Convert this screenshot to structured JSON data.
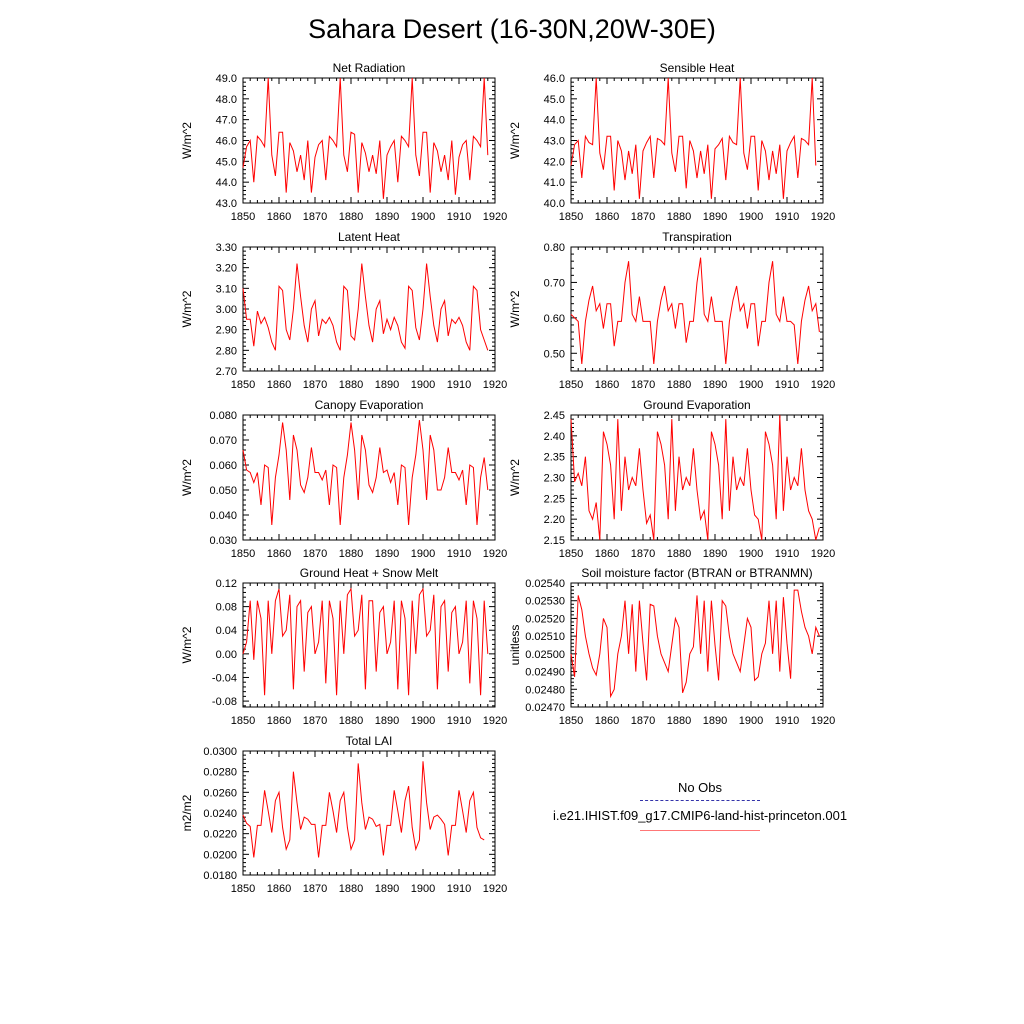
{
  "title": "Sahara Desert (16-30N,20W-30E)",
  "line_color": "#ff0000",
  "obs_color": "#3333aa",
  "legend": {
    "obs_label": "No Obs",
    "model_label": "i.e21.IHIST.f09_g17.CMIP6-land-hist-princeton.001"
  },
  "chart_data": [
    {
      "type": "line",
      "title": "Net Radiation",
      "ylabel": "W/m^2",
      "xlim": [
        1850,
        1920
      ],
      "ylim": [
        43.0,
        49.0
      ],
      "xticks": [
        "1850",
        "1860",
        "1870",
        "1880",
        "1890",
        "1900",
        "1910",
        "1920"
      ],
      "yticks": [
        "43.0",
        "44.0",
        "45.0",
        "46.0",
        "47.0",
        "48.0",
        "49.0"
      ],
      "x_start": 1850,
      "series": [
        {
          "values": [
            44.7,
            45.7,
            46.0,
            44.0,
            46.2,
            46.0,
            45.7,
            49.0,
            45.3,
            44.3,
            46.4,
            46.4,
            43.5,
            45.9,
            45.5,
            44.5,
            45.3,
            44.1,
            46.0,
            43.5,
            45.2,
            45.8,
            46.0,
            44.1,
            46.2,
            46.0,
            45.7,
            49.0,
            45.3,
            44.5,
            46.4,
            46.3,
            43.5,
            45.9,
            45.4,
            44.5,
            45.3,
            44.4,
            46.0,
            43.2,
            45.3,
            45.7,
            46.0,
            44.0,
            46.2,
            46.0,
            45.7,
            49.0,
            45.3,
            44.3,
            46.4,
            46.4,
            43.5,
            45.9,
            45.5,
            44.5,
            45.3,
            44.1,
            46.0,
            43.4,
            45.2,
            45.8,
            46.0,
            44.1,
            46.2,
            46.0,
            45.7,
            49.0,
            45.3
          ]
        }
      ]
    },
    {
      "type": "line",
      "title": "Sensible Heat",
      "ylabel": "W/m^2",
      "xlim": [
        1850,
        1920
      ],
      "ylim": [
        40.0,
        46.0
      ],
      "xticks": [
        "1850",
        "1860",
        "1870",
        "1880",
        "1890",
        "1900",
        "1910",
        "1920"
      ],
      "yticks": [
        "40.0",
        "41.0",
        "42.0",
        "43.0",
        "44.0",
        "45.0",
        "46.0"
      ],
      "x_start": 1850,
      "series": [
        {
          "values": [
            41.8,
            42.8,
            43.0,
            41.2,
            43.2,
            42.9,
            42.8,
            46.0,
            42.4,
            41.6,
            43.2,
            43.2,
            40.6,
            43.0,
            42.5,
            41.1,
            42.5,
            41.4,
            42.8,
            40.2,
            42.5,
            42.9,
            43.2,
            41.2,
            43.1,
            43.0,
            42.8,
            46.0,
            42.4,
            41.5,
            43.2,
            43.2,
            40.7,
            43.0,
            42.5,
            41.2,
            42.5,
            41.4,
            42.8,
            40.2,
            42.6,
            42.8,
            43.1,
            41.1,
            43.2,
            42.9,
            42.8,
            46.0,
            42.4,
            41.6,
            43.2,
            43.2,
            40.6,
            43.0,
            42.5,
            41.1,
            42.5,
            41.4,
            42.8,
            40.2,
            42.5,
            42.9,
            43.2,
            41.2,
            43.1,
            43.0,
            42.8,
            46.0,
            41.8
          ]
        }
      ]
    },
    {
      "type": "line",
      "title": "Latent Heat",
      "ylabel": "W/m^2",
      "xlim": [
        1850,
        1920
      ],
      "ylim": [
        2.7,
        3.3
      ],
      "xticks": [
        "1850",
        "1860",
        "1870",
        "1880",
        "1890",
        "1900",
        "1910",
        "1920"
      ],
      "yticks": [
        "2.70",
        "2.80",
        "2.90",
        "3.00",
        "3.10",
        "3.20",
        "3.30"
      ],
      "x_start": 1850,
      "series": [
        {
          "values": [
            3.1,
            2.95,
            2.95,
            2.82,
            2.99,
            2.93,
            2.96,
            2.91,
            2.84,
            2.8,
            3.11,
            3.09,
            2.9,
            2.85,
            3.0,
            3.22,
            3.06,
            2.92,
            2.84,
            3.0,
            3.04,
            2.87,
            2.95,
            2.93,
            2.96,
            2.92,
            2.84,
            2.8,
            3.11,
            3.09,
            2.87,
            2.85,
            3.0,
            3.22,
            3.06,
            2.92,
            2.84,
            3.0,
            3.04,
            2.88,
            2.95,
            2.9,
            2.96,
            2.92,
            2.84,
            2.81,
            3.11,
            3.09,
            2.91,
            2.85,
            3.0,
            3.22,
            3.06,
            2.92,
            2.84,
            3.0,
            3.04,
            2.87,
            2.95,
            2.93,
            2.96,
            2.92,
            2.84,
            2.8,
            3.11,
            3.09,
            2.9,
            2.85,
            2.8
          ]
        }
      ]
    },
    {
      "type": "line",
      "title": "Transpiration",
      "ylabel": "W/m^2",
      "xlim": [
        1850,
        1920
      ],
      "ylim": [
        0.45,
        0.8
      ],
      "xticks": [
        "1850",
        "1860",
        "1870",
        "1880",
        "1890",
        "1900",
        "1910",
        "1920"
      ],
      "yticks": [
        "0.50",
        "0.60",
        "0.70",
        "0.80"
      ],
      "x_start": 1850,
      "series": [
        {
          "values": [
            0.61,
            0.6,
            0.59,
            0.47,
            0.59,
            0.65,
            0.69,
            0.62,
            0.64,
            0.57,
            0.64,
            0.64,
            0.52,
            0.59,
            0.59,
            0.7,
            0.76,
            0.61,
            0.59,
            0.66,
            0.59,
            0.59,
            0.59,
            0.47,
            0.59,
            0.65,
            0.69,
            0.62,
            0.64,
            0.57,
            0.64,
            0.64,
            0.53,
            0.59,
            0.59,
            0.7,
            0.77,
            0.61,
            0.59,
            0.66,
            0.59,
            0.59,
            0.59,
            0.47,
            0.59,
            0.65,
            0.69,
            0.62,
            0.64,
            0.57,
            0.64,
            0.64,
            0.52,
            0.59,
            0.59,
            0.7,
            0.76,
            0.61,
            0.59,
            0.66,
            0.59,
            0.59,
            0.58,
            0.47,
            0.59,
            0.65,
            0.69,
            0.62,
            0.64,
            0.56
          ]
        }
      ]
    },
    {
      "type": "line",
      "title": "Canopy Evaporation",
      "ylabel": "W/m^2",
      "xlim": [
        1850,
        1920
      ],
      "ylim": [
        0.03,
        0.08
      ],
      "xticks": [
        "1850",
        "1860",
        "1870",
        "1880",
        "1890",
        "1900",
        "1910",
        "1920"
      ],
      "yticks": [
        "0.030",
        "0.040",
        "0.050",
        "0.060",
        "0.070",
        "0.080"
      ],
      "x_start": 1850,
      "series": [
        {
          "values": [
            0.066,
            0.058,
            0.057,
            0.053,
            0.057,
            0.044,
            0.06,
            0.059,
            0.036,
            0.055,
            0.064,
            0.077,
            0.066,
            0.046,
            0.072,
            0.066,
            0.052,
            0.049,
            0.055,
            0.067,
            0.057,
            0.057,
            0.054,
            0.058,
            0.044,
            0.06,
            0.059,
            0.036,
            0.055,
            0.064,
            0.077,
            0.066,
            0.046,
            0.072,
            0.066,
            0.052,
            0.049,
            0.055,
            0.067,
            0.057,
            0.058,
            0.053,
            0.057,
            0.044,
            0.06,
            0.059,
            0.036,
            0.055,
            0.064,
            0.078,
            0.066,
            0.046,
            0.072,
            0.066,
            0.05,
            0.05,
            0.055,
            0.067,
            0.057,
            0.057,
            0.054,
            0.058,
            0.044,
            0.06,
            0.059,
            0.036,
            0.055,
            0.063,
            0.05
          ]
        }
      ]
    },
    {
      "type": "line",
      "title": "Ground Evaporation",
      "ylabel": "W/m^2",
      "xlim": [
        1850,
        1920
      ],
      "ylim": [
        2.15,
        2.45
      ],
      "xticks": [
        "1850",
        "1860",
        "1870",
        "1880",
        "1890",
        "1900",
        "1910",
        "1920"
      ],
      "yticks": [
        "2.15",
        "2.20",
        "2.25",
        "2.30",
        "2.35",
        "2.40",
        "2.45"
      ],
      "x_start": 1850,
      "series": [
        {
          "values": [
            2.44,
            2.29,
            2.31,
            2.28,
            2.35,
            2.22,
            2.2,
            2.24,
            2.15,
            2.41,
            2.38,
            2.33,
            2.2,
            2.44,
            2.22,
            2.35,
            2.27,
            2.3,
            2.28,
            2.37,
            2.27,
            2.19,
            2.21,
            2.15,
            2.41,
            2.38,
            2.33,
            2.2,
            2.44,
            2.22,
            2.35,
            2.27,
            2.3,
            2.28,
            2.37,
            2.27,
            2.2,
            2.22,
            2.15,
            2.41,
            2.38,
            2.33,
            2.2,
            2.44,
            2.22,
            2.35,
            2.27,
            2.3,
            2.28,
            2.37,
            2.27,
            2.21,
            2.2,
            2.15,
            2.41,
            2.38,
            2.33,
            2.2,
            2.45,
            2.22,
            2.35,
            2.27,
            2.3,
            2.28,
            2.37,
            2.27,
            2.22,
            2.2,
            2.15,
            2.18
          ]
        }
      ]
    },
    {
      "type": "line",
      "title": "Ground Heat + Snow Melt",
      "ylabel": "W/m^2",
      "xlim": [
        1850,
        1920
      ],
      "ylim": [
        -0.09,
        0.12
      ],
      "xticks": [
        "1850",
        "1860",
        "1870",
        "1880",
        "1890",
        "1900",
        "1910",
        "1920"
      ],
      "yticks": [
        "-0.08",
        "-0.04",
        "0.00",
        "0.04",
        "0.08",
        "0.12"
      ],
      "x_start": 1850,
      "series": [
        {
          "values": [
            0.0,
            0.02,
            0.09,
            -0.01,
            0.09,
            0.06,
            -0.07,
            0.09,
            0.0,
            0.09,
            0.11,
            0.03,
            0.04,
            0.1,
            -0.06,
            0.08,
            0.09,
            -0.03,
            0.07,
            0.08,
            0.0,
            0.02,
            0.09,
            -0.05,
            0.09,
            0.06,
            -0.07,
            0.09,
            0.0,
            0.1,
            0.11,
            0.03,
            0.04,
            0.1,
            -0.06,
            0.09,
            0.09,
            -0.03,
            0.07,
            0.08,
            0.0,
            0.02,
            0.09,
            -0.06,
            0.09,
            0.06,
            -0.07,
            0.09,
            0.0,
            0.1,
            0.11,
            0.03,
            0.04,
            0.1,
            -0.06,
            0.08,
            0.09,
            -0.03,
            0.07,
            0.08,
            0.0,
            0.02,
            0.09,
            -0.05,
            0.09,
            0.06,
            -0.07,
            0.09,
            0.0
          ]
        }
      ]
    },
    {
      "type": "line",
      "title": "Soil moisture factor (BTRAN or BTRANMN)",
      "ylabel": "unitless",
      "xlim": [
        1850,
        1920
      ],
      "ylim": [
        0.0247,
        0.0254
      ],
      "xticks": [
        "1850",
        "1860",
        "1870",
        "1880",
        "1890",
        "1900",
        "1910",
        "1920"
      ],
      "yticks": [
        "0.02470",
        "0.02480",
        "0.02490",
        "0.02500",
        "0.02510",
        "0.02520",
        "0.02530",
        "0.02540"
      ],
      "x_start": 1850,
      "series": [
        {
          "values": [
            0.025,
            0.02487,
            0.02533,
            0.02525,
            0.0251,
            0.025,
            0.02492,
            0.02488,
            0.025,
            0.0252,
            0.02515,
            0.02476,
            0.0248,
            0.025,
            0.0251,
            0.0253,
            0.025,
            0.02528,
            0.0249,
            0.0253,
            0.02506,
            0.02485,
            0.02528,
            0.02527,
            0.0251,
            0.025,
            0.02495,
            0.0249,
            0.02505,
            0.0252,
            0.02515,
            0.02478,
            0.02484,
            0.025,
            0.02504,
            0.02533,
            0.025,
            0.0253,
            0.0249,
            0.0253,
            0.02505,
            0.02485,
            0.0253,
            0.02527,
            0.0251,
            0.025,
            0.02495,
            0.0249,
            0.02505,
            0.0252,
            0.02515,
            0.02485,
            0.02487,
            0.025,
            0.02506,
            0.0253,
            0.025,
            0.0253,
            0.0249,
            0.02532,
            0.02506,
            0.02486,
            0.02536,
            0.02536,
            0.02524,
            0.02515,
            0.0251,
            0.025,
            0.02515,
            0.0251
          ]
        }
      ]
    },
    {
      "type": "line",
      "title": "Total LAI",
      "ylabel": "m2/m2",
      "xlim": [
        1850,
        1920
      ],
      "ylim": [
        0.018,
        0.03
      ],
      "xticks": [
        "1850",
        "1860",
        "1870",
        "1880",
        "1890",
        "1900",
        "1910",
        "1920"
      ],
      "yticks": [
        "0.0180",
        "0.0200",
        "0.0220",
        "0.0240",
        "0.0260",
        "0.0280",
        "0.0300"
      ],
      "x_start": 1850,
      "series": [
        {
          "values": [
            0.0238,
            0.023,
            0.0227,
            0.0197,
            0.0228,
            0.0228,
            0.0262,
            0.0242,
            0.0221,
            0.0252,
            0.026,
            0.0226,
            0.0205,
            0.0214,
            0.028,
            0.025,
            0.0224,
            0.0236,
            0.0234,
            0.0229,
            0.0229,
            0.0197,
            0.0228,
            0.0228,
            0.026,
            0.0242,
            0.0221,
            0.0252,
            0.026,
            0.0226,
            0.0205,
            0.0214,
            0.0288,
            0.025,
            0.0224,
            0.0236,
            0.0234,
            0.0227,
            0.0229,
            0.0199,
            0.0228,
            0.0228,
            0.0262,
            0.0242,
            0.0221,
            0.0252,
            0.0266,
            0.0226,
            0.0205,
            0.0214,
            0.029,
            0.025,
            0.0224,
            0.0236,
            0.0238,
            0.0234,
            0.0229,
            0.0199,
            0.0228,
            0.0228,
            0.0262,
            0.0242,
            0.0221,
            0.0252,
            0.026,
            0.0226,
            0.0216,
            0.0214
          ]
        }
      ]
    }
  ]
}
